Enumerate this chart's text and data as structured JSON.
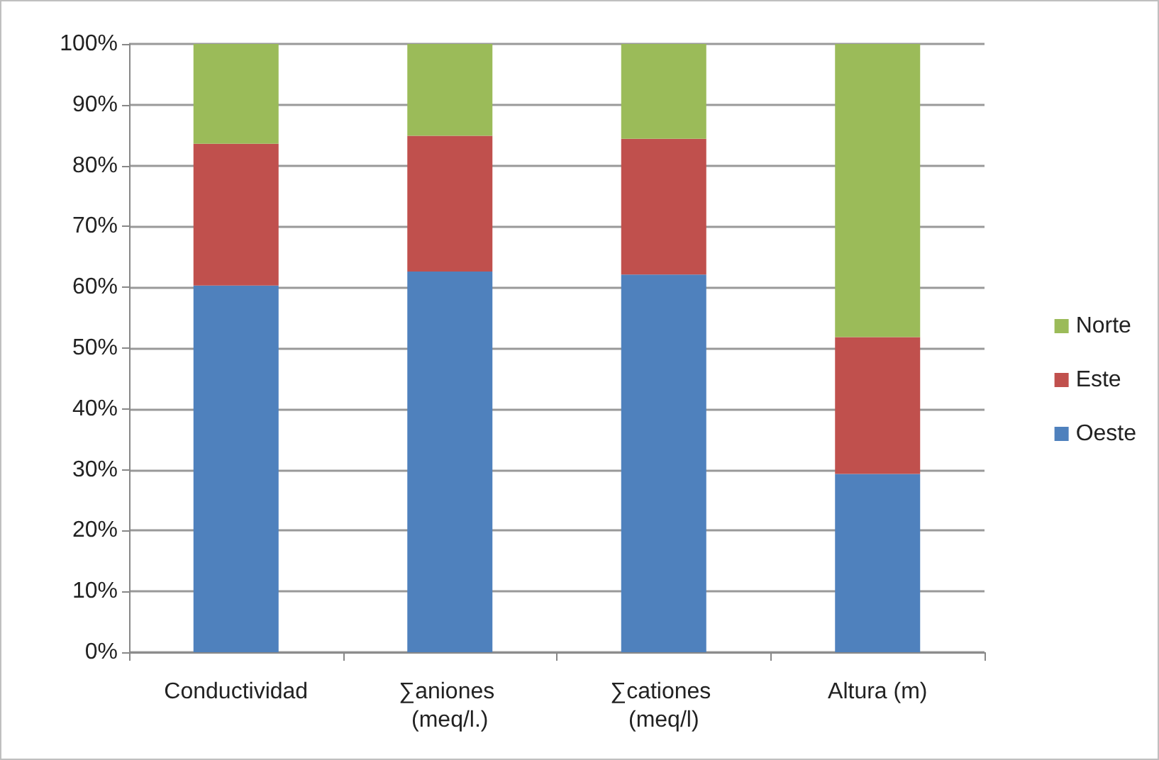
{
  "chart_data": {
    "type": "bar",
    "stacked": true,
    "categories": [
      "Conductividad",
      "∑aniones (meq/l.)",
      "∑cationes (meq/l)",
      "Altura (m)"
    ],
    "series": [
      {
        "name": "Oeste",
        "color": "#4f81bd",
        "values": [
          60.3,
          62.6,
          62.1,
          29.3
        ]
      },
      {
        "name": "Este",
        "color": "#c0504d",
        "values": [
          23.3,
          22.3,
          22.3,
          22.5
        ]
      },
      {
        "name": "Norte",
        "color": "#9bbb59",
        "values": [
          16.4,
          15.1,
          15.6,
          48.2
        ]
      }
    ],
    "ylim": [
      0,
      100
    ],
    "yticks": [
      {
        "value": 0,
        "label": "0%"
      },
      {
        "value": 10,
        "label": "10%"
      },
      {
        "value": 20,
        "label": "20%"
      },
      {
        "value": 30,
        "label": "30%"
      },
      {
        "value": 40,
        "label": "40%"
      },
      {
        "value": 50,
        "label": "50%"
      },
      {
        "value": 60,
        "label": "60%"
      },
      {
        "value": 70,
        "label": "70%"
      },
      {
        "value": 80,
        "label": "80%"
      },
      {
        "value": 90,
        "label": "90%"
      },
      {
        "value": 100,
        "label": "100%"
      }
    ],
    "grid": "y",
    "legend": "right"
  }
}
